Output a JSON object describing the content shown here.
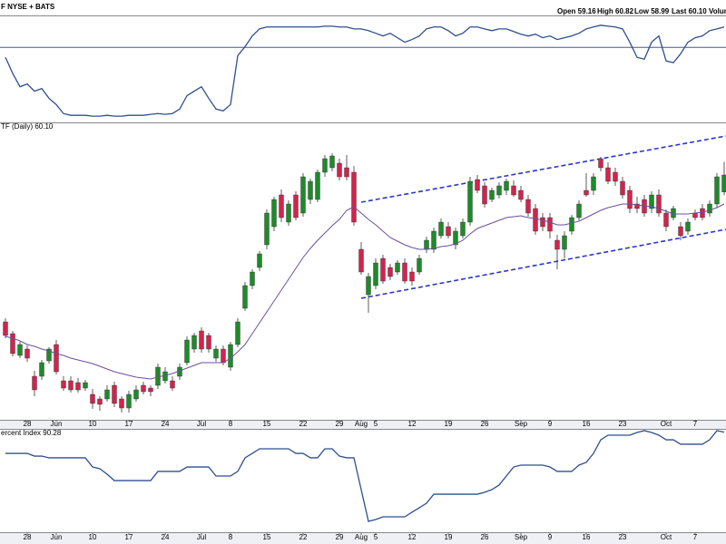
{
  "chart_data": [
    {
      "type": "line",
      "title": "F NYSE + BATS",
      "color": "#2f4f8f",
      "ylim": [
        0,
        100
      ],
      "ref_line": 72,
      "values": [
        62.4,
        47.0,
        34.2,
        36.8,
        29.9,
        32.5,
        23.1,
        17.1,
        8.5,
        6.8,
        6.8,
        6.8,
        6.0,
        6.0,
        6.8,
        6.0,
        6.0,
        6.8,
        6.8,
        6.8,
        7.7,
        8.5,
        7.7,
        8.5,
        12.8,
        25.6,
        29.9,
        34.2,
        23.1,
        12.8,
        11.1,
        17.1,
        64.1,
        72.6,
        82.9,
        89.7,
        91.5,
        91.5,
        91.5,
        91.5,
        91.5,
        91.5,
        91.5,
        91.5,
        92.3,
        92.3,
        91.5,
        91.5,
        89.7,
        89.7,
        88.0,
        85.5,
        82.9,
        85.5,
        81.2,
        76.9,
        79.5,
        82.9,
        89.7,
        91.5,
        91.5,
        88.0,
        82.9,
        85.5,
        91.5,
        91.5,
        89.7,
        88.0,
        89.7,
        89.7,
        87.2,
        84.6,
        82.9,
        84.6,
        81.2,
        82.9,
        79.5,
        81.2,
        82.9,
        85.5,
        89.7,
        91.5,
        93.2,
        92.3,
        91.5,
        89.7,
        76.9,
        62.4,
        60.7,
        76.9,
        82.9,
        59.0,
        57.3,
        65.8,
        76.9,
        81.2,
        82.9,
        88.0,
        89.7,
        91.5
      ]
    },
    {
      "type": "candlestick",
      "title": "TF (Daily) 60.10",
      "header": [
        "Open 59.16",
        "High 60.82",
        "Low 58.99",
        "Last 60.10",
        "Volume"
      ],
      "up_color": "#1f8a2a",
      "down_color": "#d1244d",
      "ylim": [
        46.6,
        62.6
      ],
      "categories": [
        null,
        null,
        null,
        "28",
        null,
        null,
        null,
        "Jun",
        null,
        null,
        null,
        null,
        "10",
        null,
        null,
        null,
        null,
        "17",
        null,
        null,
        null,
        null,
        "24",
        null,
        null,
        null,
        null,
        "Jul",
        null,
        null,
        null,
        "8",
        null,
        null,
        null,
        null,
        "15",
        null,
        null,
        null,
        null,
        "22",
        null,
        null,
        null,
        null,
        "29",
        null,
        null,
        "Aug",
        null,
        "5",
        null,
        null,
        null,
        null,
        "12",
        null,
        null,
        null,
        null,
        "19",
        null,
        null,
        null,
        null,
        "26",
        null,
        null,
        null,
        null,
        "Sep",
        null,
        null,
        null,
        "9",
        null,
        null,
        null,
        null,
        "16",
        null,
        null,
        null,
        null,
        "23",
        null,
        null,
        null,
        null,
        null,
        "Oct",
        null,
        null,
        null,
        "7",
        null,
        null,
        null,
        null
      ],
      "open": [
        52.0,
        51.35,
        50.15,
        50.5,
        49.0,
        49.0,
        49.85,
        50.75,
        48.75,
        48.75,
        48.65,
        48.35,
        48.0,
        47.75,
        47.75,
        48.5,
        47.75,
        47.25,
        47.75,
        48.5,
        48.35,
        48.5,
        48.75,
        48.75,
        49.0,
        49.75,
        50.5,
        51.5,
        51.25,
        50.0,
        50.5,
        49.5,
        50.75,
        52.75,
        54.0,
        55.0,
        56.25,
        57.25,
        59.0,
        57.5,
        59.0,
        58.0,
        58.75,
        58.75,
        60.25,
        60.5,
        60.75,
        60.5,
        60.25,
        56.0,
        53.5,
        54.0,
        55.5,
        55.0,
        54.75,
        55.25,
        54.75,
        54.75,
        56.0,
        56.0,
        56.75,
        57.25,
        56.25,
        56.75,
        57.5,
        59.85,
        59.5,
        58.75,
        59.0,
        59.25,
        59.5,
        59.25,
        58.75,
        58.25,
        57.75,
        57.75,
        56.5,
        56.0,
        57.0,
        57.75,
        59.25,
        59.25,
        61.0,
        60.5,
        60.25,
        59.75,
        59.25,
        58.5,
        58.75,
        58.25,
        59.0,
        58.0,
        57.75,
        57.25,
        57.0,
        58.0,
        58.25,
        58.0,
        58.5,
        59.16
      ],
      "high": [
        52.2,
        51.5,
        50.9,
        50.7,
        49.3,
        49.9,
        50.6,
        51.0,
        49.0,
        49.0,
        48.9,
        48.8,
        48.3,
        47.9,
        48.5,
        48.7,
        47.9,
        48.2,
        48.5,
        48.7,
        48.5,
        49.7,
        49.5,
        49.0,
        49.7,
        51.2,
        51.4,
        51.7,
        51.4,
        50.7,
        50.7,
        50.9,
        52.2,
        54.2,
        54.9,
        55.9,
        58.2,
        58.9,
        59.3,
        58.7,
        59.2,
        60.2,
        59.9,
        60.4,
        61.2,
        61.3,
        61.0,
        61.2,
        60.6,
        56.4,
        54.7,
        55.5,
        55.7,
        55.2,
        55.4,
        55.5,
        55.0,
        55.7,
        56.7,
        57.2,
        57.7,
        57.5,
        57.2,
        57.7,
        60.0,
        60.1,
        59.7,
        59.4,
        59.7,
        59.9,
        59.8,
        59.5,
        59.0,
        58.5,
        58.0,
        58.0,
        56.8,
        57.0,
        57.9,
        58.7,
        60.2,
        60.2,
        61.1,
        60.8,
        60.5,
        60.0,
        59.5,
        58.9,
        59.0,
        59.2,
        59.3,
        58.2,
        58.4,
        57.5,
        57.7,
        58.2,
        58.5,
        58.7,
        60.2,
        60.82
      ],
      "low": [
        51.1,
        50.1,
        50.0,
        49.8,
        47.9,
        48.8,
        49.7,
        49.1,
        48.2,
        48.1,
        48.1,
        48.2,
        47.2,
        47.1,
        47.6,
        47.3,
        47.0,
        47.0,
        47.6,
        48.0,
        47.9,
        48.3,
        48.6,
        48.2,
        48.8,
        49.6,
        50.3,
        50.3,
        50.3,
        49.8,
        49.6,
        49.3,
        50.6,
        52.6,
        53.8,
        54.8,
        56.0,
        57.0,
        57.5,
        57.3,
        57.6,
        57.8,
        58.5,
        58.6,
        60.0,
        60.3,
        59.8,
        59.8,
        57.3,
        54.6,
        52.5,
        53.8,
        54.1,
        54.3,
        54.6,
        54.1,
        54.0,
        54.6,
        55.8,
        55.8,
        56.6,
        56.6,
        56.0,
        56.6,
        57.3,
        59.1,
        58.3,
        58.6,
        58.8,
        59.0,
        58.9,
        58.6,
        57.8,
        56.8,
        57.0,
        56.6,
        54.9,
        55.5,
        56.8,
        57.6,
        58.9,
        59.0,
        60.3,
        59.6,
        59.5,
        58.8,
        58.0,
        58.0,
        57.8,
        58.0,
        57.8,
        57.0,
        57.6,
        56.5,
        56.8,
        57.6,
        57.6,
        57.8,
        58.3,
        58.99
      ],
      "close": [
        51.25,
        50.25,
        50.75,
        50.0,
        48.25,
        49.75,
        50.5,
        49.25,
        48.35,
        48.25,
        48.25,
        48.65,
        47.5,
        47.45,
        48.25,
        47.5,
        47.25,
        48.0,
        48.25,
        48.15,
        48.15,
        49.5,
        49.25,
        48.35,
        49.5,
        51.0,
        51.25,
        50.5,
        50.5,
        50.5,
        49.75,
        50.75,
        52.0,
        54.0,
        54.75,
        55.75,
        58.0,
        58.75,
        57.75,
        58.5,
        57.75,
        60.0,
        59.75,
        60.25,
        61.0,
        61.15,
        60.0,
        60.0,
        57.5,
        54.75,
        54.5,
        55.25,
        54.25,
        54.5,
        55.25,
        54.25,
        54.25,
        55.5,
        56.5,
        57.0,
        57.5,
        56.75,
        57.0,
        57.5,
        59.75,
        59.25,
        58.5,
        59.25,
        59.5,
        59.75,
        59.0,
        58.75,
        58.0,
        57.0,
        57.25,
        57.0,
        56.0,
        56.75,
        57.75,
        58.5,
        59.0,
        60.0,
        60.5,
        59.75,
        59.75,
        59.0,
        58.25,
        58.25,
        58.0,
        59.0,
        58.0,
        57.25,
        58.25,
        56.75,
        57.5,
        57.75,
        57.75,
        58.5,
        60.0,
        60.1
      ],
      "moving_average": {
        "color": "#6a4fa0",
        "values": [
          51.2,
          51.1,
          50.95,
          50.75,
          50.65,
          50.5,
          50.4,
          50.25,
          50.15,
          50.0,
          49.9,
          49.8,
          49.7,
          49.55,
          49.4,
          49.25,
          49.15,
          49.05,
          48.95,
          48.9,
          48.85,
          48.95,
          49.05,
          49.15,
          49.3,
          49.45,
          49.6,
          49.75,
          49.75,
          49.75,
          49.75,
          50.0,
          50.35,
          50.75,
          51.35,
          51.95,
          52.55,
          53.15,
          53.75,
          54.35,
          54.95,
          55.55,
          56.05,
          56.5,
          56.9,
          57.3,
          57.65,
          58.15,
          58.35,
          58.0,
          57.65,
          57.35,
          57.0,
          56.65,
          56.45,
          56.25,
          56.1,
          56.0,
          56.0,
          56.05,
          56.15,
          56.2,
          56.3,
          56.5,
          56.85,
          57.15,
          57.3,
          57.45,
          57.6,
          57.75,
          57.8,
          57.85,
          57.75,
          57.7,
          57.6,
          57.5,
          57.35,
          57.35,
          57.45,
          57.55,
          57.75,
          57.95,
          58.15,
          58.3,
          58.4,
          58.5,
          58.5,
          58.45,
          58.4,
          58.35,
          58.25,
          58.1,
          57.95,
          57.95,
          57.95,
          58.0,
          58.05,
          58.15,
          58.3,
          58.5
        ]
      },
      "trendlines": [
        {
          "color": "#2a35d0",
          "from": [
            49,
            58.6
          ],
          "to": [
            99.25,
            62.25
          ]
        },
        {
          "color": "#2a35d0",
          "from": [
            49,
            53.3
          ],
          "to": [
            99.25,
            57.1
          ]
        }
      ]
    },
    {
      "type": "line",
      "title": "ercent Index 90.28",
      "color": "#2f4f8f",
      "ylim": [
        0,
        100
      ],
      "values": [
        70.8,
        70.8,
        70.8,
        70.8,
        68.3,
        68.3,
        66.7,
        66.7,
        66.7,
        66.7,
        66.7,
        66.7,
        58.3,
        56.7,
        51.7,
        45.8,
        45.8,
        45.8,
        45.8,
        45.8,
        45.8,
        54.2,
        54.2,
        54.2,
        54.2,
        58.3,
        58.3,
        58.3,
        58.3,
        50.0,
        50.0,
        50.0,
        54.2,
        66.7,
        70.8,
        75.0,
        75.0,
        75.0,
        75.0,
        75.0,
        70.8,
        70.8,
        66.7,
        66.7,
        75.0,
        75.0,
        68.3,
        66.7,
        66.7,
        37.5,
        8.3,
        10.0,
        12.5,
        12.5,
        12.5,
        12.5,
        16.7,
        20.8,
        25.0,
        33.3,
        33.3,
        33.3,
        33.3,
        33.3,
        33.3,
        33.3,
        35.0,
        37.5,
        41.7,
        50.0,
        58.3,
        60.0,
        60.0,
        60.0,
        60.0,
        58.3,
        54.2,
        54.2,
        54.2,
        60.0,
        62.5,
        70.8,
        83.3,
        87.5,
        87.5,
        87.5,
        87.5,
        90.0,
        91.7,
        90.0,
        87.5,
        83.3,
        83.3,
        79.2,
        79.2,
        79.2,
        79.2,
        83.3,
        91.7,
        90.28
      ]
    }
  ]
}
